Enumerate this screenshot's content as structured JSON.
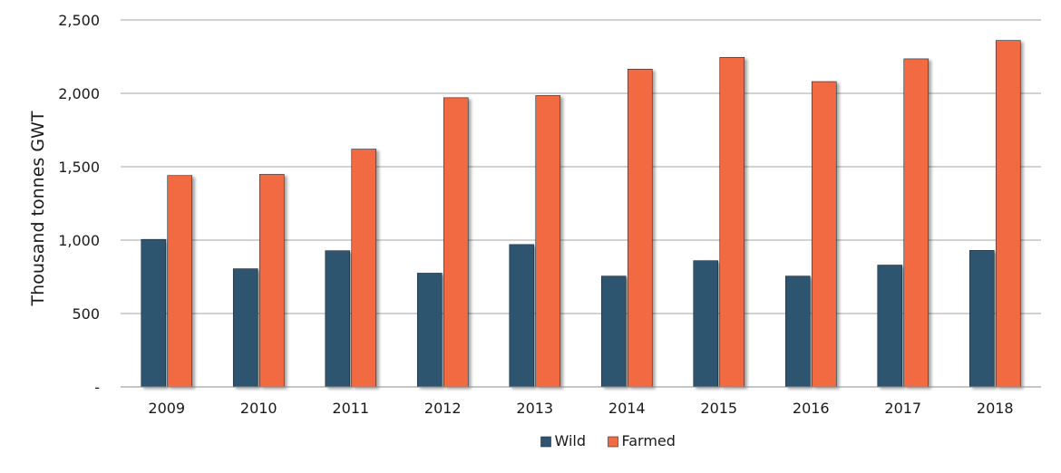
{
  "chart_data": {
    "type": "bar",
    "title": "",
    "xlabel": "",
    "ylabel": "Thousand tonnes GWT",
    "categories": [
      "2009",
      "2010",
      "2011",
      "2012",
      "2013",
      "2014",
      "2015",
      "2016",
      "2017",
      "2018"
    ],
    "series": [
      {
        "name": "Wild",
        "color": "#2f5470",
        "values": [
          1005,
          805,
          928,
          775,
          970,
          755,
          860,
          755,
          830,
          930
        ]
      },
      {
        "name": "Farmed",
        "color": "#f26b43",
        "values": [
          1440,
          1448,
          1620,
          1970,
          1985,
          2165,
          2245,
          2080,
          2235,
          2360
        ]
      }
    ],
    "ylim": [
      0,
      2500
    ],
    "yticks": [
      0,
      500,
      1000,
      1500,
      2000,
      2500
    ],
    "ytick_labels": [
      "-",
      "500",
      "1,000",
      "1,500",
      "2,000",
      "2,500"
    ],
    "grid": true,
    "legend": "bottom-center"
  }
}
